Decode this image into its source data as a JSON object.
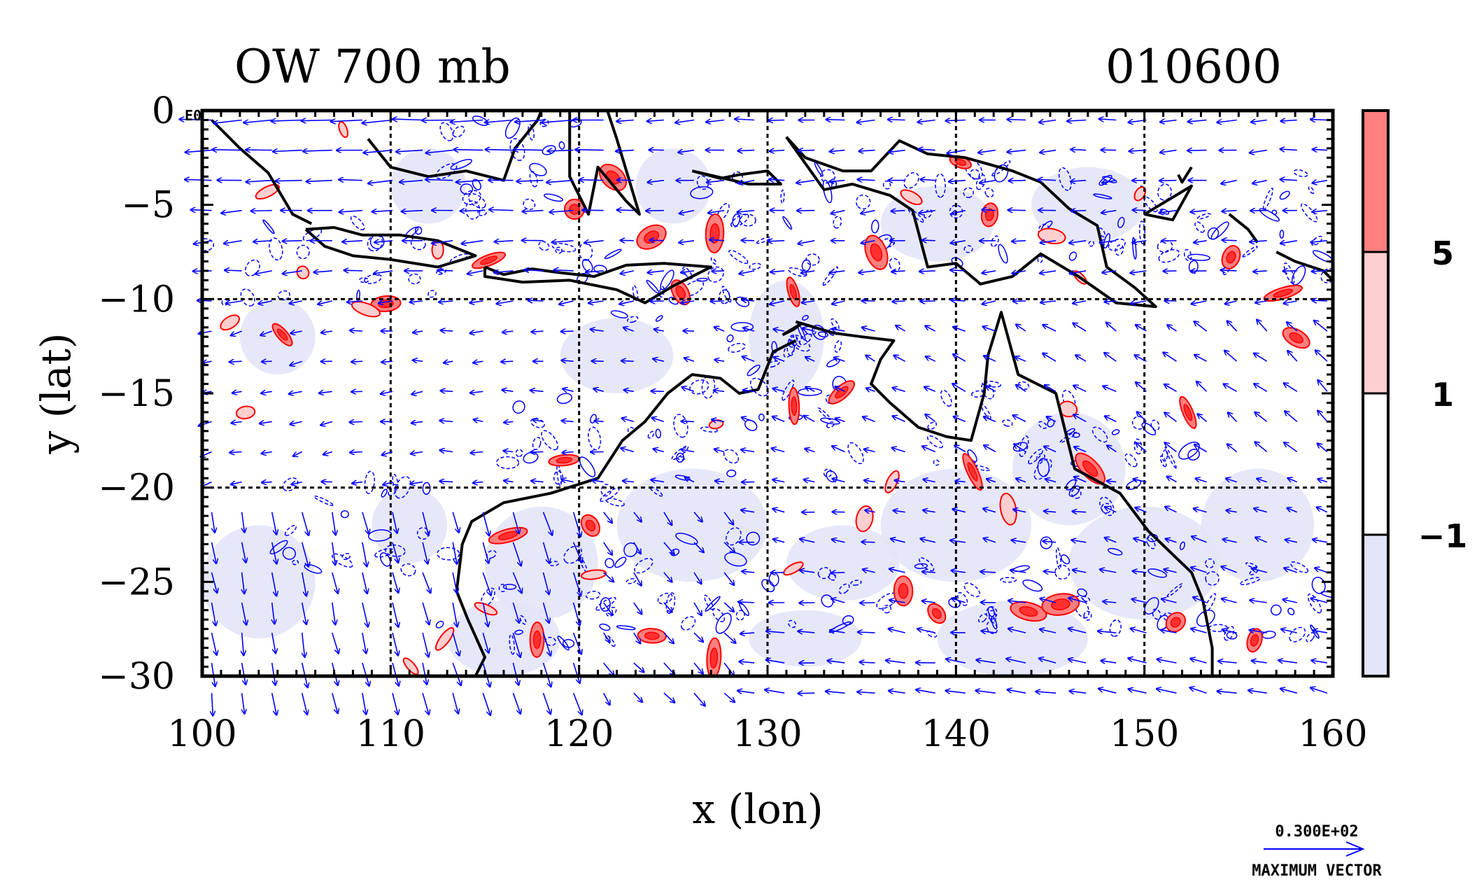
{
  "title_left": "OW 700 mb",
  "title_right": "010600",
  "corner_label": "E0",
  "x_axis": {
    "label": "x (lon)",
    "range": [
      100,
      160
    ],
    "ticks": [
      100,
      110,
      120,
      130,
      140,
      150,
      160
    ],
    "tick_labels": [
      "100",
      "110",
      "120",
      "130",
      "140",
      "150",
      "160"
    ]
  },
  "y_axis": {
    "label": "y (lat)",
    "range": [
      -30,
      0
    ],
    "ticks": [
      0,
      -5,
      -10,
      -15,
      -20,
      -25,
      -30
    ],
    "tick_labels": [
      "0",
      "−5",
      "−10",
      "−15",
      "−20",
      "−25",
      "−30"
    ]
  },
  "grid": {
    "on": true,
    "style": "dashed",
    "lon": [
      110,
      120,
      130,
      140,
      150
    ],
    "lat": [
      -10,
      -20
    ]
  },
  "colorbar": {
    "placement": "right",
    "levels": [
      "5",
      "1",
      "−1"
    ],
    "colors": [
      "#ff7f7f",
      "#ffcfcf",
      "#ffffff",
      "#e2e4f8"
    ]
  },
  "vector_key": {
    "value": "0.300E+02",
    "label": "MAXIMUM VECTOR",
    "color": "#0000ff"
  },
  "colors": {
    "positive_contour": "#ff0000",
    "negative_contour": "#0000ff",
    "coastline": "#000000",
    "vectors": "#0000ff",
    "negative_shade": "#e2e4f8",
    "positive_fill": "#ff7f7f",
    "positive_fill_light": "#ffcfcf"
  }
}
